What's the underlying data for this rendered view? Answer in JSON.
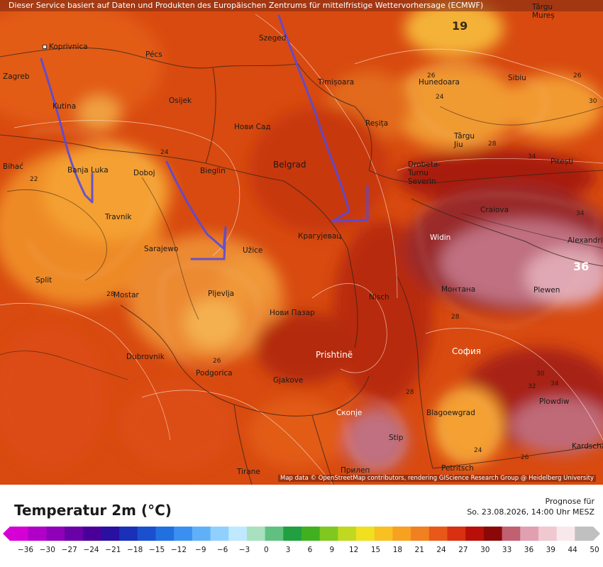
{
  "credits": {
    "top": "Dieser Service basiert auf Daten und Produkten des Europäischen Zentrums für mittelfristige Wettervorhersage (ECMWF)",
    "bottom": "Map data © OpenStreetMap contributors, rendering GIScience Research Group @ Heidelberg University"
  },
  "legend": {
    "title": "Temperatur 2m (°C)",
    "forecast_label": "Prognose für",
    "forecast_time": "So. 23.08.2026, 14:00 Uhr MESZ",
    "ticks": [
      "-36",
      "-30",
      "-27",
      "-24",
      "-21",
      "-18",
      "-15",
      "-12",
      "-9",
      "-6",
      "-3",
      "0",
      "3",
      "6",
      "9",
      "12",
      "15",
      "18",
      "21",
      "24",
      "27",
      "30",
      "33",
      "36",
      "39",
      "44",
      "50"
    ],
    "colors": [
      "#d400d4",
      "#b000c8",
      "#8f00b8",
      "#6a00a8",
      "#4a0098",
      "#2a10a0",
      "#1a30b8",
      "#1a50d0",
      "#2070e0",
      "#3a90f0",
      "#60b0f8",
      "#90d0ff",
      "#c0e8ff",
      "#a8e0c0",
      "#60c080",
      "#20a040",
      "#40b020",
      "#80c820",
      "#c0d820",
      "#f0e020",
      "#f8c020",
      "#f8a020",
      "#f08020",
      "#e85818",
      "#d83010",
      "#b81008",
      "#8c0808",
      "#c06070",
      "#e0a0b0",
      "#f0c8d0",
      "#f8e8ec",
      "#c0c0c0"
    ],
    "color_min": "#d400d4",
    "color_max": "#c0c0c0"
  },
  "cities": [
    {
      "name": "Koprivnica"
    },
    {
      "name": "Zagreb"
    },
    {
      "name": "Pécs"
    },
    {
      "name": "Szeged"
    },
    {
      "name": "Târgu Mureș"
    },
    {
      "name": "Kutina"
    },
    {
      "name": "Osijek"
    },
    {
      "name": "Нови Сад"
    },
    {
      "name": "Timișoara"
    },
    {
      "name": "Hunedoara"
    },
    {
      "name": "Sibiu"
    },
    {
      "name": "Reșița"
    },
    {
      "name": "Târgu Jiu"
    },
    {
      "name": "Pitești"
    },
    {
      "name": "Bihać"
    },
    {
      "name": "Banja Luka"
    },
    {
      "name": "Doboj"
    },
    {
      "name": "Bieglin"
    },
    {
      "name": "Belgrad"
    },
    {
      "name": "Drobeta-Turnu Severin"
    },
    {
      "name": "Craiova"
    },
    {
      "name": "Travnik"
    },
    {
      "name": "Крагујевац"
    },
    {
      "name": "Widin"
    },
    {
      "name": "Alexandria"
    },
    {
      "name": "Sarajewo"
    },
    {
      "name": "Užice"
    },
    {
      "name": "Split"
    },
    {
      "name": "Mostar"
    },
    {
      "name": "Pljevlja"
    },
    {
      "name": "Nisch"
    },
    {
      "name": "Монтана"
    },
    {
      "name": "Plewen"
    },
    {
      "name": "Нови Пазар"
    },
    {
      "name": "Dubrovnik"
    },
    {
      "name": "Prishtinë"
    },
    {
      "name": "София"
    },
    {
      "name": "Podgorica"
    },
    {
      "name": "Gjakove"
    },
    {
      "name": "Plowdiw"
    },
    {
      "name": "Скопје"
    },
    {
      "name": "Blagoewgrad"
    },
    {
      "name": "Stip"
    },
    {
      "name": "Kardschali"
    },
    {
      "name": "Tirane"
    },
    {
      "name": "Прилеп"
    },
    {
      "name": "Petritsch"
    }
  ],
  "isotherm_labels": [
    "22",
    "26",
    "24",
    "26",
    "28",
    "34",
    "34",
    "30",
    "26",
    "28",
    "28",
    "30",
    "32",
    "34",
    "24",
    "28",
    "24",
    "26"
  ],
  "max_labels": [
    "19",
    "36"
  ]
}
